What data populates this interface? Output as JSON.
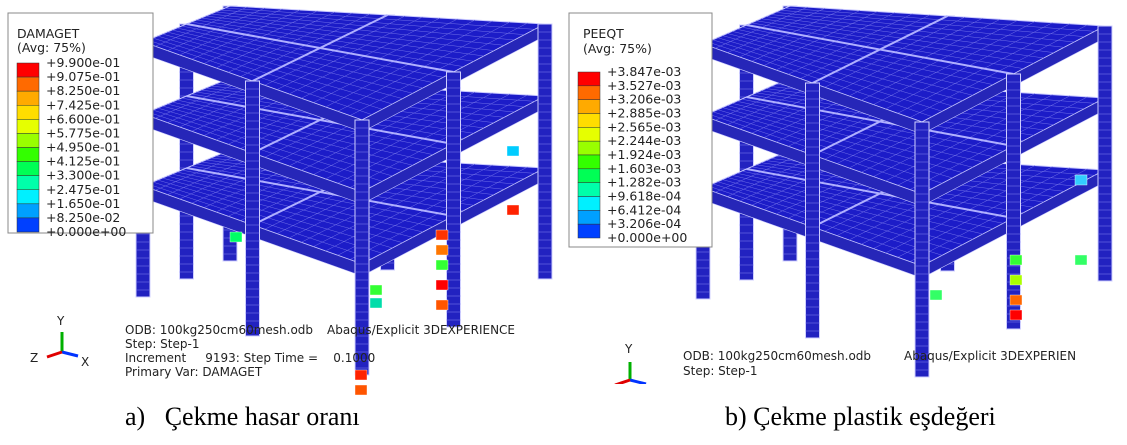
{
  "panels": [
    {
      "legend": {
        "title": "DAMAGET",
        "average": "(Avg: 75%)",
        "labels": [
          "+9.900e-01",
          "+9.075e-01",
          "+8.250e-01",
          "+7.425e-01",
          "+6.600e-01",
          "+5.775e-01",
          "+4.950e-01",
          "+4.125e-01",
          "+3.300e-01",
          "+2.475e-01",
          "+1.650e-01",
          "+8.250e-02",
          "+0.000e+00"
        ]
      },
      "triad": {
        "y": "Y",
        "x": "X",
        "z": "Z"
      },
      "info": {
        "odb": "ODB: 100kg250cm60mesh.odb",
        "solver": "Abaqus/Explicit 3DEXPERIENCE",
        "step": "Step: Step-1",
        "increment": "Increment     9193: Step Time =    0.1000",
        "variable": "Primary Var: DAMAGET"
      },
      "caption": "a)   Çekme hasar oranı"
    },
    {
      "legend": {
        "title": "PEEQT",
        "average": "(Avg: 75%)",
        "labels": [
          "+3.847e-03",
          "+3.527e-03",
          "+3.206e-03",
          "+2.885e-03",
          "+2.565e-03",
          "+2.244e-03",
          "+1.924e-03",
          "+1.603e-03",
          "+1.282e-03",
          "+9.618e-04",
          "+6.412e-04",
          "+3.206e-04",
          "+0.000e+00"
        ]
      },
      "triad": {
        "y": "Y",
        "x": "X",
        "z": "Z"
      },
      "info": {
        "odb": "ODB: 100kg250cm60mesh.odb",
        "solver": "Abaqus/Explicit 3DEXPERIEN",
        "step": "Step: Step-1"
      },
      "caption": "b) Çekme plastik eşdeğeri"
    }
  ]
}
